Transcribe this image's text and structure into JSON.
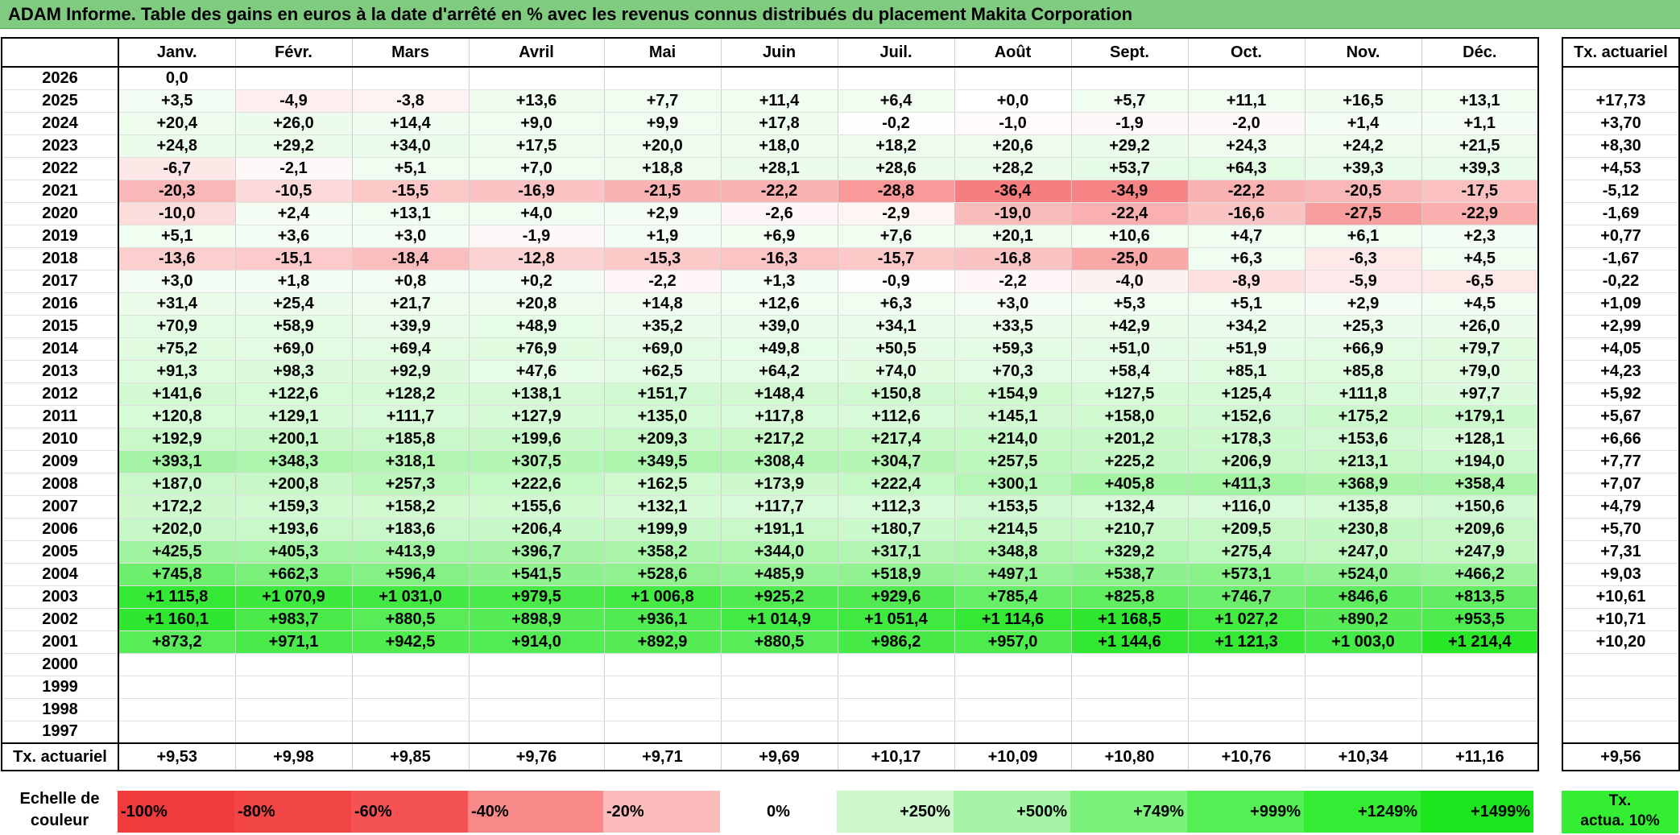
{
  "title": "ADAM Informe. Table des gains en euros à la date d'arrêté en % avec les revenus connus distribués du placement Makita Corporation",
  "months": [
    "Janv.",
    "Févr.",
    "Mars",
    "Avril",
    "Mai",
    "Juin",
    "Juil.",
    "Août",
    "Sept.",
    "Oct.",
    "Nov.",
    "Déc."
  ],
  "annual_header": "Tx. actuariel",
  "rows": [
    {
      "year": "2026",
      "values": [
        "0,0",
        "",
        "",
        "",
        "",
        "",
        "",
        "",
        "",
        "",
        "",
        ""
      ],
      "annual": ""
    },
    {
      "year": "2025",
      "values": [
        "+3,5",
        "-4,9",
        "-3,8",
        "+13,6",
        "+7,7",
        "+11,4",
        "+6,4",
        "+0,0",
        "+5,7",
        "+11,1",
        "+16,5",
        "+13,1"
      ],
      "annual": "+17,73"
    },
    {
      "year": "2024",
      "values": [
        "+20,4",
        "+26,0",
        "+14,4",
        "+9,0",
        "+9,9",
        "+17,8",
        "-0,2",
        "-1,0",
        "-1,9",
        "-2,0",
        "+1,4",
        "+1,1"
      ],
      "annual": "+3,70"
    },
    {
      "year": "2023",
      "values": [
        "+24,8",
        "+29,2",
        "+34,0",
        "+17,5",
        "+20,0",
        "+18,0",
        "+18,2",
        "+20,6",
        "+29,2",
        "+24,3",
        "+24,2",
        "+21,5"
      ],
      "annual": "+8,30"
    },
    {
      "year": "2022",
      "values": [
        "-6,7",
        "-2,1",
        "+5,1",
        "+7,0",
        "+18,8",
        "+28,1",
        "+28,6",
        "+28,2",
        "+53,7",
        "+64,3",
        "+39,3",
        "+39,3"
      ],
      "annual": "+4,53"
    },
    {
      "year": "2021",
      "values": [
        "-20,3",
        "-10,5",
        "-15,5",
        "-16,9",
        "-21,5",
        "-22,2",
        "-28,8",
        "-36,4",
        "-34,9",
        "-22,2",
        "-20,5",
        "-17,5"
      ],
      "annual": "-5,12"
    },
    {
      "year": "2020",
      "values": [
        "-10,0",
        "+2,4",
        "+13,1",
        "+4,0",
        "+2,9",
        "-2,6",
        "-2,9",
        "-19,0",
        "-22,4",
        "-16,6",
        "-27,5",
        "-22,9"
      ],
      "annual": "-1,69"
    },
    {
      "year": "2019",
      "values": [
        "+5,1",
        "+3,6",
        "+3,0",
        "-1,9",
        "+1,9",
        "+6,9",
        "+7,6",
        "+20,1",
        "+10,6",
        "+4,7",
        "+6,1",
        "+2,3"
      ],
      "annual": "+0,77"
    },
    {
      "year": "2018",
      "values": [
        "-13,6",
        "-15,1",
        "-18,4",
        "-12,8",
        "-15,3",
        "-16,3",
        "-15,7",
        "-16,8",
        "-25,0",
        "+6,3",
        "-6,3",
        "+4,5"
      ],
      "annual": "-1,67"
    },
    {
      "year": "2017",
      "values": [
        "+3,0",
        "+1,8",
        "+0,8",
        "+0,2",
        "-2,2",
        "+1,3",
        "-0,9",
        "-2,2",
        "-4,0",
        "-8,9",
        "-5,9",
        "-6,5"
      ],
      "annual": "-0,22"
    },
    {
      "year": "2016",
      "values": [
        "+31,4",
        "+25,4",
        "+21,7",
        "+20,8",
        "+14,8",
        "+12,6",
        "+6,3",
        "+3,0",
        "+5,3",
        "+5,1",
        "+2,9",
        "+4,5"
      ],
      "annual": "+1,09"
    },
    {
      "year": "2015",
      "values": [
        "+70,9",
        "+58,9",
        "+39,9",
        "+48,9",
        "+35,2",
        "+39,0",
        "+34,1",
        "+33,5",
        "+42,9",
        "+34,2",
        "+25,3",
        "+26,0"
      ],
      "annual": "+2,99"
    },
    {
      "year": "2014",
      "values": [
        "+75,2",
        "+69,0",
        "+69,4",
        "+76,9",
        "+69,0",
        "+49,8",
        "+50,5",
        "+59,3",
        "+51,0",
        "+51,9",
        "+66,9",
        "+79,7"
      ],
      "annual": "+4,05"
    },
    {
      "year": "2013",
      "values": [
        "+91,3",
        "+98,3",
        "+92,9",
        "+47,6",
        "+62,5",
        "+64,2",
        "+74,0",
        "+70,3",
        "+58,4",
        "+85,1",
        "+85,8",
        "+79,0"
      ],
      "annual": "+4,23"
    },
    {
      "year": "2012",
      "values": [
        "+141,6",
        "+122,6",
        "+128,2",
        "+138,1",
        "+151,7",
        "+148,4",
        "+150,8",
        "+154,9",
        "+127,5",
        "+125,4",
        "+111,8",
        "+97,7"
      ],
      "annual": "+5,92"
    },
    {
      "year": "2011",
      "values": [
        "+120,8",
        "+129,1",
        "+111,7",
        "+127,9",
        "+135,0",
        "+117,8",
        "+112,6",
        "+145,1",
        "+158,0",
        "+152,6",
        "+175,2",
        "+179,1"
      ],
      "annual": "+5,67"
    },
    {
      "year": "2010",
      "values": [
        "+192,9",
        "+200,1",
        "+185,8",
        "+199,6",
        "+209,3",
        "+217,2",
        "+217,4",
        "+214,0",
        "+201,2",
        "+178,3",
        "+153,6",
        "+128,1"
      ],
      "annual": "+6,66"
    },
    {
      "year": "2009",
      "values": [
        "+393,1",
        "+348,3",
        "+318,1",
        "+307,5",
        "+349,5",
        "+308,4",
        "+304,7",
        "+257,5",
        "+225,2",
        "+206,9",
        "+213,1",
        "+194,0"
      ],
      "annual": "+7,77"
    },
    {
      "year": "2008",
      "values": [
        "+187,0",
        "+200,8",
        "+257,3",
        "+222,6",
        "+162,5",
        "+173,9",
        "+222,4",
        "+300,1",
        "+405,8",
        "+411,3",
        "+368,9",
        "+358,4"
      ],
      "annual": "+7,07"
    },
    {
      "year": "2007",
      "values": [
        "+172,2",
        "+159,3",
        "+158,2",
        "+155,6",
        "+132,1",
        "+117,7",
        "+112,3",
        "+153,5",
        "+132,4",
        "+116,0",
        "+135,8",
        "+150,6"
      ],
      "annual": "+4,79"
    },
    {
      "year": "2006",
      "values": [
        "+202,0",
        "+193,6",
        "+183,6",
        "+206,4",
        "+199,9",
        "+191,1",
        "+180,7",
        "+214,5",
        "+210,7",
        "+209,5",
        "+230,8",
        "+209,6"
      ],
      "annual": "+5,70"
    },
    {
      "year": "2005",
      "values": [
        "+425,5",
        "+405,3",
        "+413,9",
        "+396,7",
        "+358,2",
        "+344,0",
        "+317,1",
        "+348,8",
        "+329,2",
        "+275,4",
        "+247,0",
        "+247,9"
      ],
      "annual": "+7,31"
    },
    {
      "year": "2004",
      "values": [
        "+745,8",
        "+662,3",
        "+596,4",
        "+541,5",
        "+528,6",
        "+485,9",
        "+518,9",
        "+497,1",
        "+538,7",
        "+573,1",
        "+524,0",
        "+466,2"
      ],
      "annual": "+9,03"
    },
    {
      "year": "2003",
      "values": [
        "+1 115,8",
        "+1 070,9",
        "+1 031,0",
        "+979,5",
        "+1 006,8",
        "+925,2",
        "+929,6",
        "+785,4",
        "+825,8",
        "+746,7",
        "+846,6",
        "+813,5"
      ],
      "annual": "+10,61"
    },
    {
      "year": "2002",
      "values": [
        "+1 160,1",
        "+983,7",
        "+880,5",
        "+898,9",
        "+936,1",
        "+1 014,9",
        "+1 051,4",
        "+1 114,6",
        "+1 168,5",
        "+1 027,2",
        "+890,2",
        "+953,5"
      ],
      "annual": "+10,71"
    },
    {
      "year": "2001",
      "values": [
        "+873,2",
        "+971,1",
        "+942,5",
        "+914,0",
        "+892,9",
        "+880,5",
        "+986,2",
        "+957,0",
        "+1 144,6",
        "+1 121,3",
        "+1 003,0",
        "+1 214,4"
      ],
      "annual": "+10,20"
    },
    {
      "year": "2000",
      "values": [
        "",
        "",
        "",
        "",
        "",
        "",
        "",
        "",
        "",
        "",
        "",
        ""
      ],
      "annual": ""
    },
    {
      "year": "1999",
      "values": [
        "",
        "",
        "",
        "",
        "",
        "",
        "",
        "",
        "",
        "",
        "",
        ""
      ],
      "annual": ""
    },
    {
      "year": "1998",
      "values": [
        "",
        "",
        "",
        "",
        "",
        "",
        "",
        "",
        "",
        "",
        "",
        ""
      ],
      "annual": ""
    },
    {
      "year": "1997",
      "values": [
        "",
        "",
        "",
        "",
        "",
        "",
        "",
        "",
        "",
        "",
        "",
        ""
      ],
      "annual": ""
    }
  ],
  "footer": {
    "label": "Tx. actuariel",
    "values": [
      "+9,53",
      "+9,98",
      "+9,85",
      "+9,76",
      "+9,71",
      "+9,69",
      "+10,17",
      "+10,09",
      "+10,80",
      "+10,76",
      "+10,34",
      "+11,16"
    ],
    "annual": "+9,56"
  },
  "legend": {
    "label_line1": "Echelle de",
    "label_line2": "couleur",
    "swatches": [
      {
        "text": "-100%",
        "color": "#ef3b3b",
        "align": "left"
      },
      {
        "text": "-80%",
        "color": "#f24646",
        "align": "left"
      },
      {
        "text": "-60%",
        "color": "#f55353",
        "align": "left"
      },
      {
        "text": "-40%",
        "color": "#f98888",
        "align": "left"
      },
      {
        "text": "-20%",
        "color": "#fcbcbc",
        "align": "left"
      },
      {
        "text": "0%",
        "color": "#ffffff",
        "align": "center"
      },
      {
        "text": "+250%",
        "color": "#ccf8cc",
        "align": "right"
      },
      {
        "text": "+500%",
        "color": "#a6f5a6",
        "align": "right"
      },
      {
        "text": "+749%",
        "color": "#7cf17c",
        "align": "right"
      },
      {
        "text": "+999%",
        "color": "#55ef55",
        "align": "right"
      },
      {
        "text": "+1249%",
        "color": "#33ec33",
        "align": "right"
      },
      {
        "text": "+1499%",
        "color": "#1de51d",
        "align": "right"
      }
    ],
    "annual_line1": "Tx.",
    "annual_line2": "actua. 10%",
    "annual_color": "#33ee33"
  }
}
